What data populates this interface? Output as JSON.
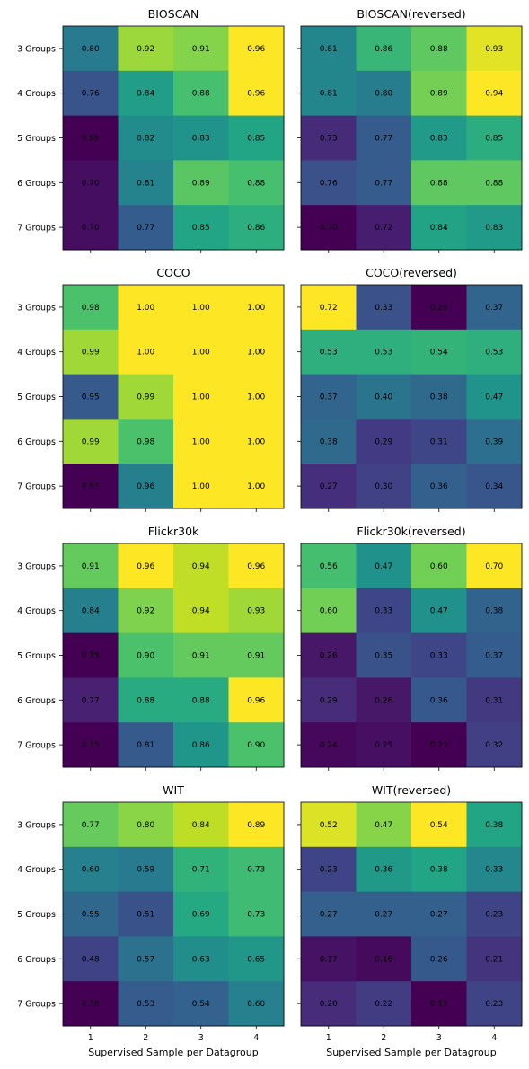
{
  "chart_data": [
    {
      "type": "heatmap",
      "title": "BIOSCAN",
      "x": [
        "1",
        "2",
        "3",
        "4"
      ],
      "y": [
        "3 Groups",
        "4 Groups",
        "5 Groups",
        "6 Groups",
        "7 Groups"
      ],
      "values": [
        [
          "0.80",
          "0.92",
          "0.91",
          "0.96"
        ],
        [
          "0.76",
          "0.84",
          "0.88",
          "0.96"
        ],
        [
          "0.69",
          "0.82",
          "0.83",
          "0.85"
        ],
        [
          "0.70",
          "0.81",
          "0.89",
          "0.88"
        ],
        [
          "0.70",
          "0.77",
          "0.85",
          "0.86"
        ]
      ],
      "xlabel": ""
    },
    {
      "type": "heatmap",
      "title": "BIOSCAN(reversed)",
      "x": [
        "1",
        "2",
        "3",
        "4"
      ],
      "y": [
        "3 Groups",
        "4 Groups",
        "5 Groups",
        "6 Groups",
        "7 Groups"
      ],
      "values": [
        [
          "0.81",
          "0.86",
          "0.88",
          "0.93"
        ],
        [
          "0.81",
          "0.80",
          "0.89",
          "0.94"
        ],
        [
          "0.73",
          "0.77",
          "0.83",
          "0.85"
        ],
        [
          "0.76",
          "0.77",
          "0.88",
          "0.88"
        ],
        [
          "0.70",
          "0.72",
          "0.84",
          "0.83"
        ]
      ],
      "xlabel": ""
    },
    {
      "type": "heatmap",
      "title": "COCO",
      "x": [
        "1",
        "2",
        "3",
        "4"
      ],
      "y": [
        "3 Groups",
        "4 Groups",
        "5 Groups",
        "6 Groups",
        "7 Groups"
      ],
      "values": [
        [
          "0.98",
          "1.00",
          "1.00",
          "1.00"
        ],
        [
          "0.99",
          "1.00",
          "1.00",
          "1.00"
        ],
        [
          "0.95",
          "0.99",
          "1.00",
          "1.00"
        ],
        [
          "0.99",
          "0.98",
          "1.00",
          "1.00"
        ],
        [
          "0.93",
          "0.96",
          "1.00",
          "1.00"
        ]
      ],
      "xlabel": ""
    },
    {
      "type": "heatmap",
      "title": "COCO(reversed)",
      "x": [
        "1",
        "2",
        "3",
        "4"
      ],
      "y": [
        "3 Groups",
        "4 Groups",
        "5 Groups",
        "6 Groups",
        "7 Groups"
      ],
      "values": [
        [
          "0.72",
          "0.33",
          "0.20",
          "0.37"
        ],
        [
          "0.53",
          "0.53",
          "0.54",
          "0.53"
        ],
        [
          "0.37",
          "0.40",
          "0.38",
          "0.47"
        ],
        [
          "0.38",
          "0.29",
          "0.31",
          "0.39"
        ],
        [
          "0.27",
          "0.30",
          "0.36",
          "0.34"
        ]
      ],
      "xlabel": ""
    },
    {
      "type": "heatmap",
      "title": "Flickr30k",
      "x": [
        "1",
        "2",
        "3",
        "4"
      ],
      "y": [
        "3 Groups",
        "4 Groups",
        "5 Groups",
        "6 Groups",
        "7 Groups"
      ],
      "values": [
        [
          "0.91",
          "0.96",
          "0.94",
          "0.96"
        ],
        [
          "0.84",
          "0.92",
          "0.94",
          "0.93"
        ],
        [
          "0.75",
          "0.90",
          "0.91",
          "0.91"
        ],
        [
          "0.77",
          "0.88",
          "0.88",
          "0.96"
        ],
        [
          "0.75",
          "0.81",
          "0.86",
          "0.90"
        ]
      ],
      "xlabel": ""
    },
    {
      "type": "heatmap",
      "title": "Flickr30k(reversed)",
      "x": [
        "1",
        "2",
        "3",
        "4"
      ],
      "y": [
        "3 Groups",
        "4 Groups",
        "5 Groups",
        "6 Groups",
        "7 Groups"
      ],
      "values": [
        [
          "0.56",
          "0.47",
          "0.60",
          "0.70"
        ],
        [
          "0.60",
          "0.33",
          "0.47",
          "0.38"
        ],
        [
          "0.26",
          "0.35",
          "0.33",
          "0.37"
        ],
        [
          "0.29",
          "0.26",
          "0.36",
          "0.31"
        ],
        [
          "0.24",
          "0.25",
          "0.23",
          "0.32"
        ]
      ],
      "xlabel": ""
    },
    {
      "type": "heatmap",
      "title": "WIT",
      "x": [
        "1",
        "2",
        "3",
        "4"
      ],
      "y": [
        "3 Groups",
        "4 Groups",
        "5 Groups",
        "6 Groups",
        "7 Groups"
      ],
      "values": [
        [
          "0.77",
          "0.80",
          "0.84",
          "0.89"
        ],
        [
          "0.60",
          "0.59",
          "0.71",
          "0.73"
        ],
        [
          "0.55",
          "0.51",
          "0.69",
          "0.73"
        ],
        [
          "0.48",
          "0.57",
          "0.63",
          "0.65"
        ],
        [
          "0.38",
          "0.53",
          "0.54",
          "0.60"
        ]
      ],
      "xlabel": "Supervised Sample per Datagroup"
    },
    {
      "type": "heatmap",
      "title": "WIT(reversed)",
      "x": [
        "1",
        "2",
        "3",
        "4"
      ],
      "y": [
        "3 Groups",
        "4 Groups",
        "5 Groups",
        "6 Groups",
        "7 Groups"
      ],
      "values": [
        [
          "0.52",
          "0.47",
          "0.54",
          "0.38"
        ],
        [
          "0.23",
          "0.36",
          "0.38",
          "0.33"
        ],
        [
          "0.27",
          "0.27",
          "0.27",
          "0.23"
        ],
        [
          "0.17",
          "0.16",
          "0.26",
          "0.21"
        ],
        [
          "0.20",
          "0.22",
          "0.15",
          "0.23"
        ]
      ],
      "xlabel": "Supervised Sample per Datagroup"
    }
  ]
}
